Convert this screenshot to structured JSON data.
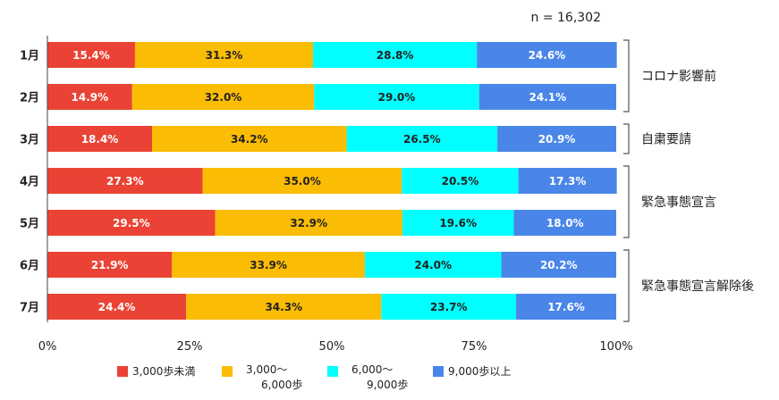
{
  "chart_data": {
    "type": "bar",
    "orientation": "horizontal",
    "stacked": "percent",
    "note": "n = 16,302",
    "categories": [
      "1月",
      "2月",
      "3月",
      "4月",
      "5月",
      "6月",
      "7月"
    ],
    "series": [
      {
        "name": "3,000歩未満",
        "color": "#ea4335",
        "label_color": "#ffffff",
        "values": [
          15.4,
          14.9,
          18.4,
          27.3,
          29.5,
          21.9,
          24.4
        ]
      },
      {
        "name": "3,000～6,000歩",
        "name_lines": [
          "3,000～",
          "6,000歩"
        ],
        "color": "#fbbc04",
        "label_color": "#222222",
        "values": [
          31.3,
          32.0,
          34.2,
          35.0,
          32.9,
          33.9,
          34.3
        ]
      },
      {
        "name": "6,000～9,000歩",
        "name_lines": [
          "6,000～",
          "9,000歩"
        ],
        "color": "#00ffff",
        "label_color": "#222222",
        "values": [
          28.8,
          29.0,
          26.5,
          20.5,
          19.6,
          24.0,
          23.7
        ]
      },
      {
        "name": "9,000歩以上",
        "color": "#4a86e8",
        "label_color": "#ffffff",
        "values": [
          24.6,
          24.1,
          20.9,
          17.3,
          18.0,
          20.2,
          17.6
        ]
      }
    ],
    "xaxis": {
      "ticks": [
        "0%",
        "25%",
        "50%",
        "75%",
        "100%"
      ],
      "range": [
        0,
        100
      ]
    },
    "groups": [
      {
        "label": "コロナ影響前",
        "from": 0,
        "to": 1
      },
      {
        "label": "自粛要請",
        "from": 2,
        "to": 2
      },
      {
        "label": "緊急事態宣言",
        "from": 3,
        "to": 4
      },
      {
        "label": "緊急事態宣言解除後",
        "from": 5,
        "to": 6
      }
    ],
    "legend_position": "bottom",
    "grid": false
  }
}
